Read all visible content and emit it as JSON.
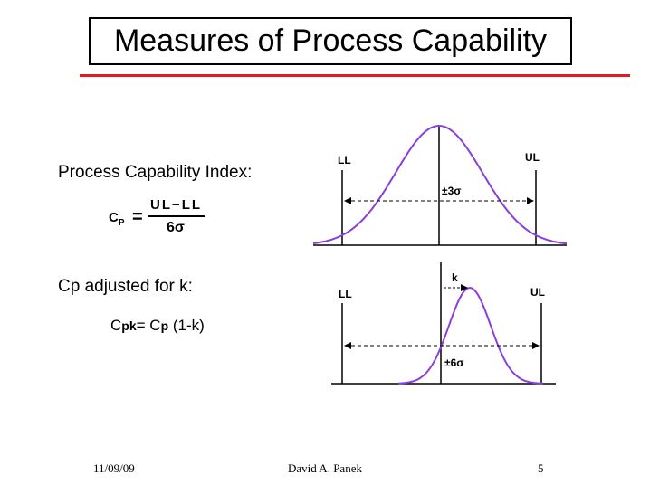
{
  "slide": {
    "title": "Measures of Process Capability",
    "section1_label": "Process Capability Index:",
    "cp_symbol": "C",
    "cp_sub": "P",
    "equals": "=",
    "frac_numerator": "UL−LL",
    "frac_denominator": "6σ",
    "section2_label": "Cp adjusted for k:",
    "cpk_c1": "C",
    "cpk_sub1": "pk",
    "cpk_eq": "= C",
    "cpk_sub2": "p",
    "cpk_rest": " (1-k)"
  },
  "figure1": {
    "ll_label": "LL",
    "ul_label": "UL",
    "spread_label": "±3σ"
  },
  "figure2": {
    "ll_label": "LL",
    "ul_label": "UL",
    "shift_label": "k",
    "spread_label": "±6σ"
  },
  "footer": {
    "date": "11/09/09",
    "author": "David A. Panek",
    "page": "5"
  },
  "colors": {
    "curve": "#8a3fd8",
    "accent_line": "#e01b24"
  }
}
